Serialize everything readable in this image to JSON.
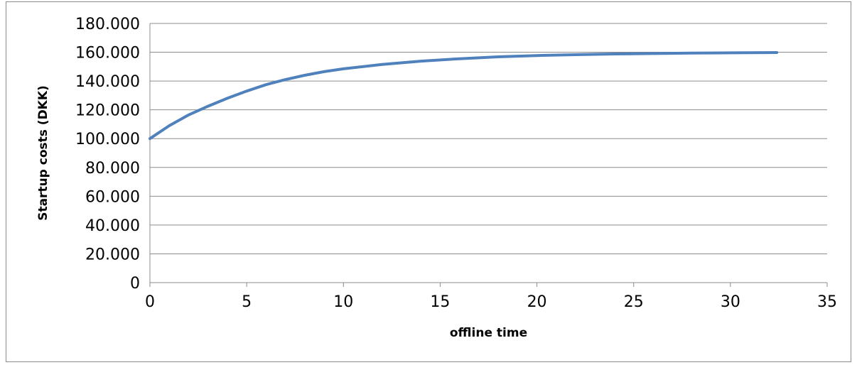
{
  "chart_data": {
    "type": "line",
    "title": "",
    "xlabel": "offline time",
    "ylabel": "Startup costs (DKK)",
    "xlim": [
      0,
      35
    ],
    "ylim": [
      0,
      180000
    ],
    "x_ticks": [
      0,
      5,
      10,
      15,
      20,
      25,
      30,
      35
    ],
    "x_tick_labels": [
      "0",
      "5",
      "10",
      "15",
      "20",
      "25",
      "30",
      "35"
    ],
    "y_ticks": [
      0,
      20000,
      40000,
      60000,
      80000,
      100000,
      120000,
      140000,
      160000,
      180000
    ],
    "y_tick_labels": [
      "0",
      "20.000",
      "40.000",
      "60.000",
      "80.000",
      "100.000",
      "120.000",
      "140.000",
      "160.000",
      "180.000"
    ],
    "grid": true,
    "legend": "none",
    "series": [
      {
        "color": "#4f81bd",
        "x": [
          0,
          1,
          2,
          3,
          4,
          5,
          6,
          7,
          8,
          9,
          10,
          12,
          14,
          16,
          18,
          20,
          22,
          24,
          26,
          28,
          30,
          32.4
        ],
        "y": [
          100000,
          109000,
          116500,
          122500,
          128000,
          133000,
          137500,
          141000,
          144000,
          146500,
          148500,
          151500,
          153800,
          155500,
          156800,
          157700,
          158300,
          158800,
          159100,
          159400,
          159600,
          159800
        ]
      }
    ]
  }
}
